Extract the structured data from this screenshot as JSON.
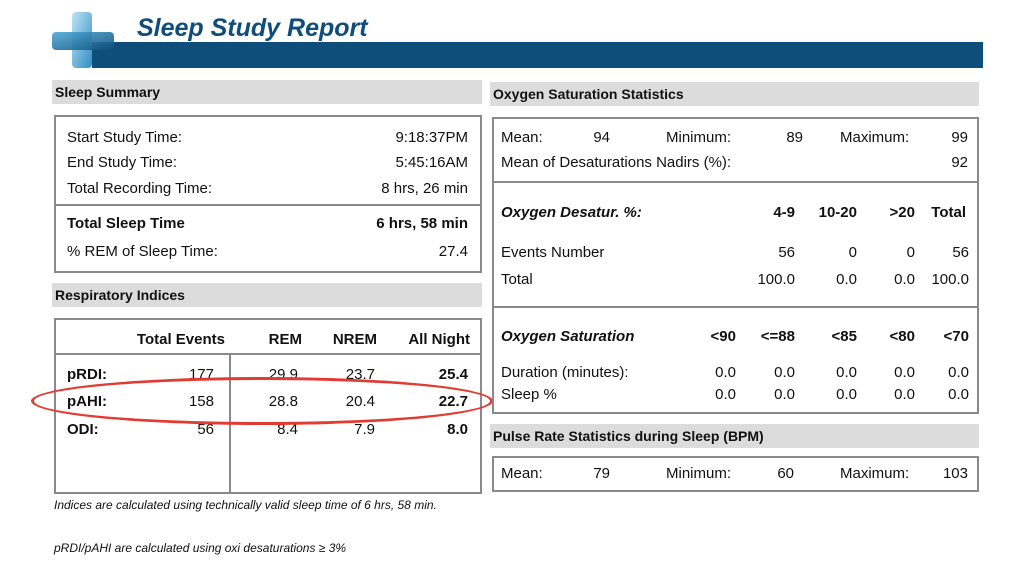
{
  "header": {
    "title": "Sleep Study Report"
  },
  "colors": {
    "brand": "#0f4d7a",
    "accent": "#4aa8d8",
    "highlight": "#e23b32",
    "section_bar": "#dcdcdc"
  },
  "logo": {
    "icon": "medical-cross-logo"
  },
  "sleep_summary": {
    "title": "Sleep Summary",
    "rows": [
      {
        "label": "Start Study Time:",
        "value": "9:18:37PM"
      },
      {
        "label": "End Study Time:",
        "value": "5:45:16AM"
      },
      {
        "label": "Total Recording Time:",
        "value": "8 hrs, 26 min"
      },
      {
        "label": "Total Sleep Time",
        "value": "6 hrs, 58 min"
      },
      {
        "label": "% REM of Sleep Time:",
        "value": "27.4"
      }
    ]
  },
  "respiratory": {
    "title": "Respiratory Indices",
    "columns": [
      "Total Events",
      "REM",
      "NREM",
      "All Night"
    ],
    "rows": [
      {
        "label": "pRDI:",
        "values": [
          "177",
          "29.9",
          "23.7",
          "25.4"
        ]
      },
      {
        "label": "pAHI:",
        "values": [
          "158",
          "28.8",
          "20.4",
          "22.7"
        ]
      },
      {
        "label": "ODI:",
        "values": [
          "56",
          "8.4",
          "7.9",
          "8.0"
        ]
      }
    ]
  },
  "notes": {
    "line1": "Indices are calculated using technically valid sleep time of 6 hrs, 58 min.",
    "line2": "pRDI/pAHI are calculated using oxi desaturations ≥ 3%"
  },
  "oxygen": {
    "title": "Oxygen Saturation Statistics",
    "mean_label": "Mean:",
    "mean": "94",
    "min_label": "Minimum:",
    "min": "89",
    "max_label": "Maximum:",
    "max": "99",
    "nadir_label": "Mean of Desaturations Nadirs (%):",
    "nadir": "92",
    "desat": {
      "title": "Oxygen Desatur. %:",
      "columns": [
        "4-9",
        "10-20",
        ">20",
        "Total"
      ],
      "rows": [
        {
          "label": "Events Number",
          "values": [
            "56",
            "0",
            "0",
            "56"
          ]
        },
        {
          "label": "Total",
          "values": [
            "100.0",
            "0.0",
            "0.0",
            "100.0"
          ]
        }
      ]
    },
    "sat": {
      "title": "Oxygen Saturation",
      "columns": [
        "<90",
        "<=88",
        "<85",
        "<80",
        "<70"
      ],
      "rows": [
        {
          "label": "Duration (minutes):",
          "values": [
            "0.0",
            "0.0",
            "0.0",
            "0.0",
            "0.0"
          ]
        },
        {
          "label": "Sleep %",
          "values": [
            "0.0",
            "0.0",
            "0.0",
            "0.0",
            "0.0"
          ]
        }
      ]
    }
  },
  "pulse": {
    "title": "Pulse Rate Statistics during Sleep (BPM)",
    "mean_label": "Mean:",
    "mean": "79",
    "min_label": "Minimum:",
    "min": "60",
    "max_label": "Maximum:",
    "max": "103"
  }
}
